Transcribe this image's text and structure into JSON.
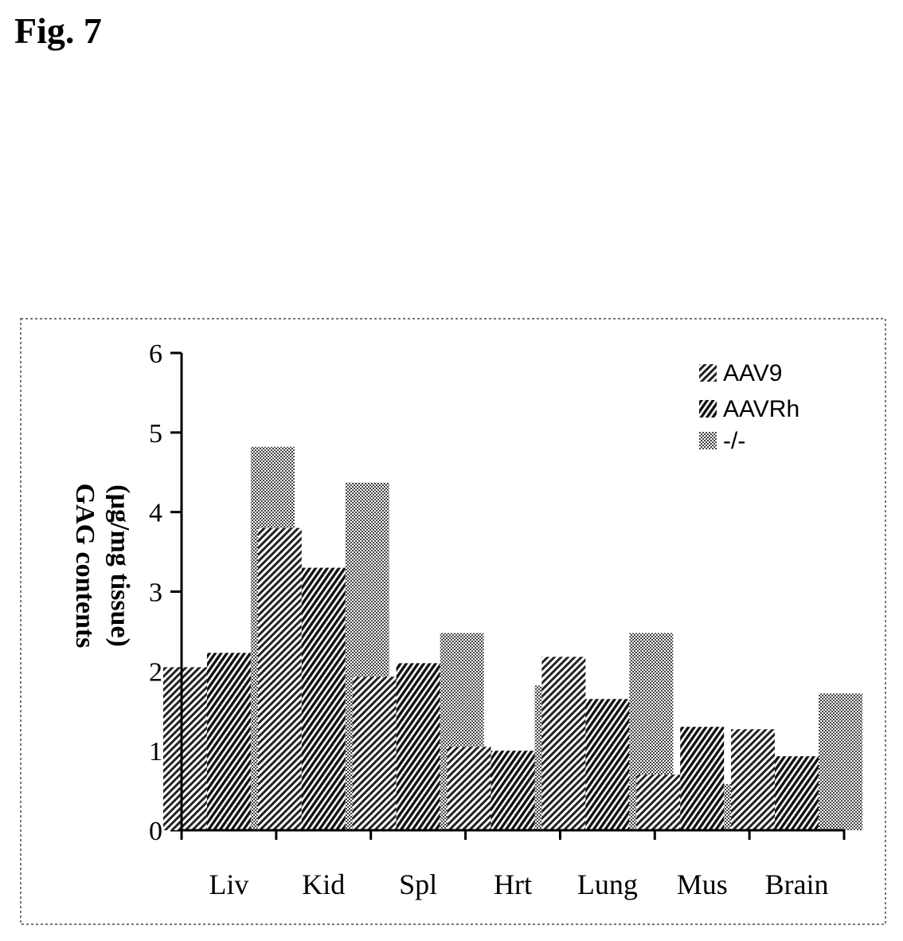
{
  "figure": {
    "label": "Fig. 7"
  },
  "chart_data": {
    "type": "bar",
    "categories": [
      "Liv",
      "Kid",
      "Spl",
      "Hrt",
      "Lung",
      "Mus",
      "Brain"
    ],
    "series": [
      {
        "name": "AAV9",
        "values": [
          2.05,
          3.8,
          1.93,
          1.05,
          2.18,
          0.7,
          1.27
        ]
      },
      {
        "name": "AAVRh",
        "values": [
          2.23,
          3.3,
          2.1,
          1.0,
          1.65,
          1.3,
          0.93
        ]
      },
      {
        "name": "-/-",
        "values": [
          4.82,
          4.37,
          2.48,
          1.82,
          2.48,
          0.58,
          1.72
        ]
      }
    ],
    "ylabel_line1": "GAG contents",
    "ylabel_line2": "(µg/mg tissue)",
    "ylim": [
      0,
      6
    ],
    "yticks": [
      "0",
      "1",
      "2",
      "3",
      "4",
      "5",
      "6"
    ],
    "legend_position": "top-right",
    "grid": false,
    "colors": {
      "bars": "#000000",
      "background": "#ffffff",
      "frame": "#777777"
    }
  }
}
